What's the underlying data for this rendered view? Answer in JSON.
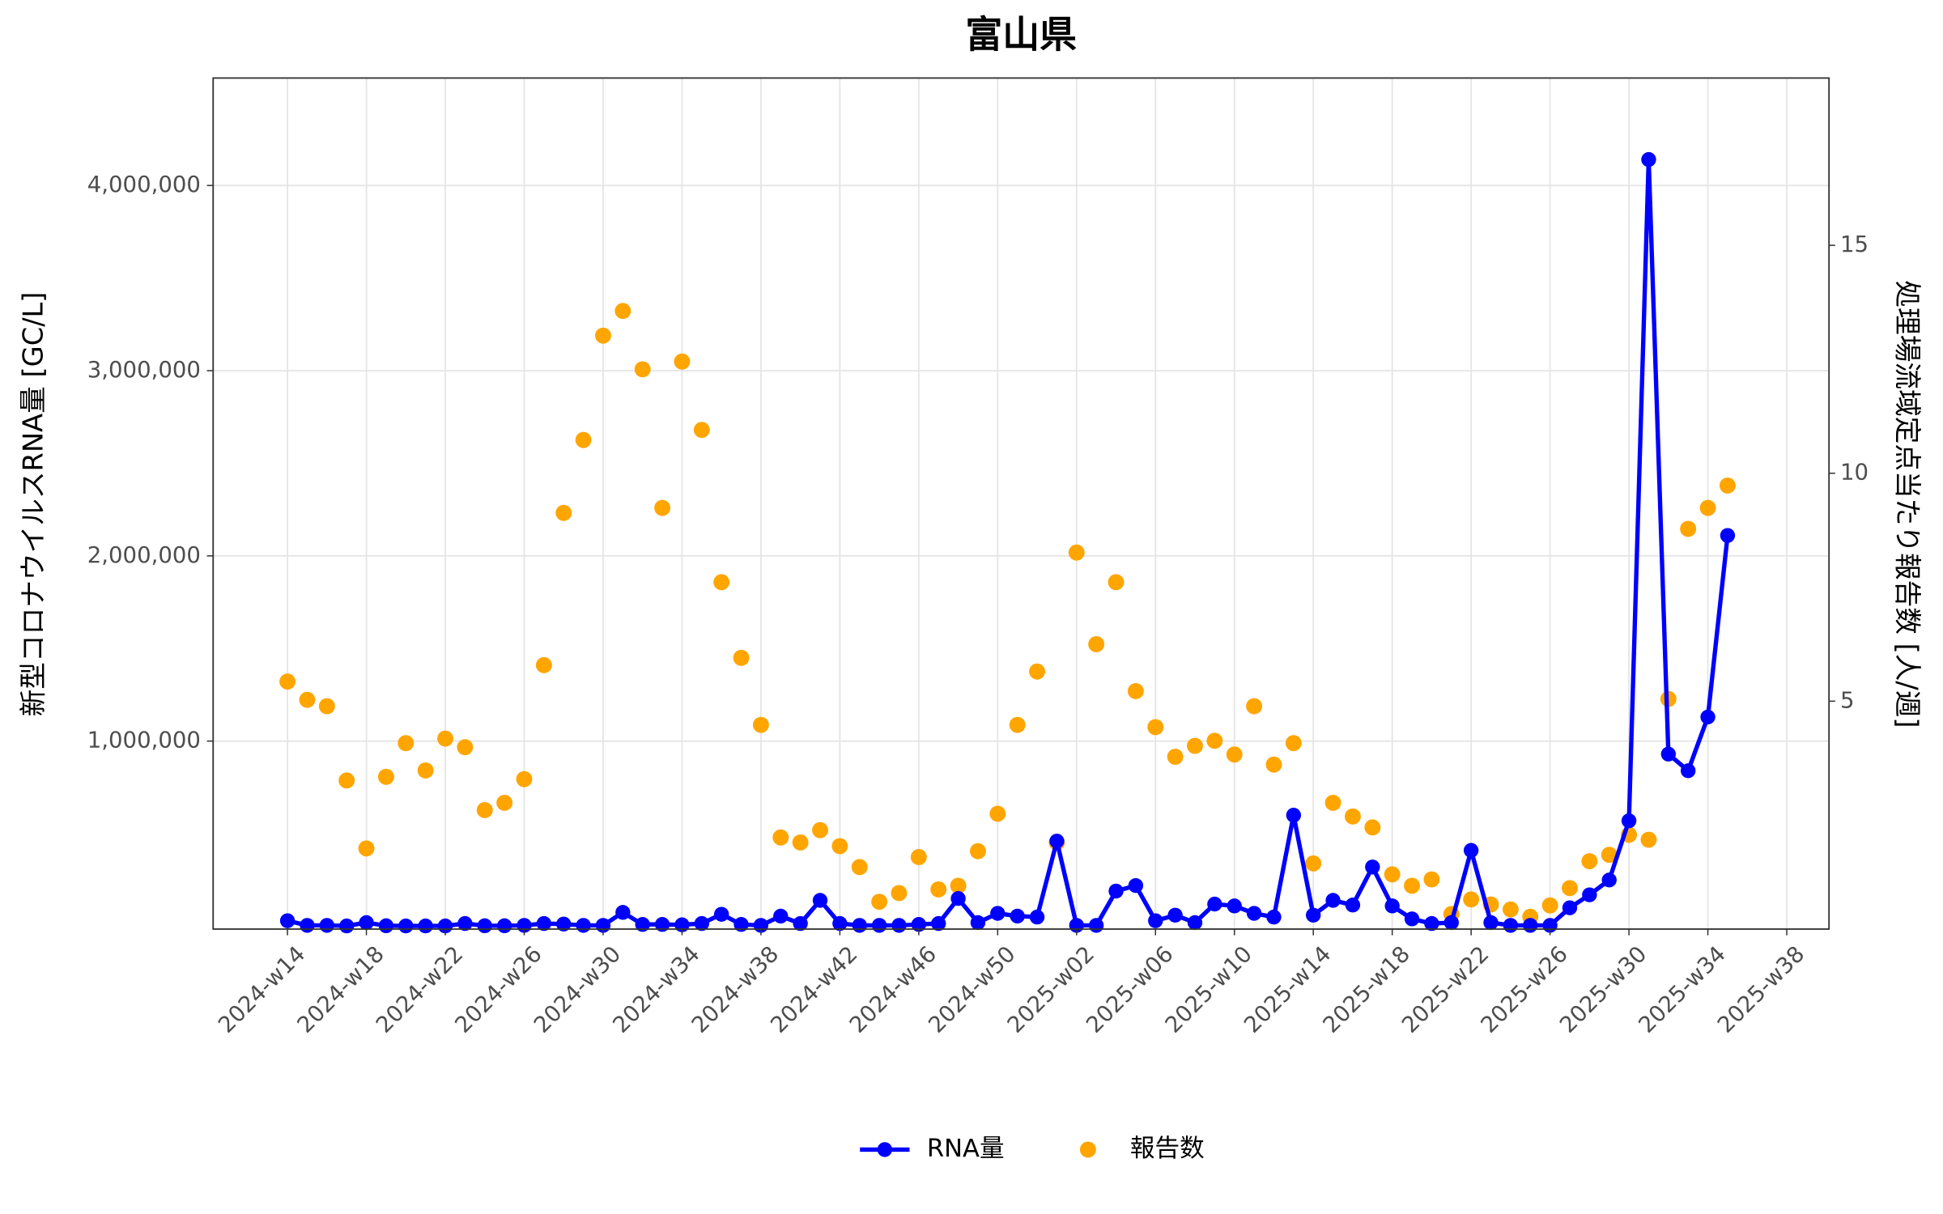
{
  "chart_data": {
    "type": "line-scatter-dual",
    "title": "富山県",
    "y_label": "新型コロナウイルスRNA量 [GC/L]",
    "y2_label": "処理場流域定点当たり報告数 [人/週]",
    "categories": [
      "2024-w14",
      null,
      null,
      null,
      "2024-w18",
      null,
      null,
      null,
      "2024-w22",
      null,
      null,
      null,
      "2024-w26",
      null,
      null,
      null,
      "2024-w30",
      null,
      null,
      null,
      "2024-w34",
      null,
      null,
      null,
      "2024-w38",
      null,
      null,
      null,
      "2024-w42",
      null,
      null,
      null,
      "2024-w46",
      null,
      null,
      null,
      "2024-w50",
      null,
      null,
      null,
      "2025-w02",
      null,
      null,
      null,
      "2025-w06",
      null,
      null,
      null,
      "2025-w10",
      null,
      null,
      null,
      "2025-w14",
      null,
      null,
      null,
      "2025-w18",
      null,
      null,
      null,
      "2025-w22",
      null,
      null,
      null,
      "2025-w26",
      null,
      null,
      null,
      "2025-w30",
      null,
      null,
      null,
      "2025-w34",
      null,
      null,
      null,
      "2025-w38"
    ],
    "series": [
      {
        "name": "RNA量",
        "color": "#0000ff",
        "style": "line-points",
        "values": [
          30000,
          5000,
          5000,
          2000,
          20000,
          3000,
          2000,
          2000,
          2000,
          15000,
          3000,
          3000,
          5000,
          15000,
          12000,
          5000,
          5000,
          75000,
          10000,
          10000,
          8000,
          15000,
          65000,
          10000,
          5000,
          55000,
          15000,
          140000,
          15000,
          5000,
          5000,
          5000,
          10000,
          15000,
          150000,
          20000,
          70000,
          55000,
          50000,
          460000,
          5000,
          5000,
          190000,
          220000,
          30000,
          60000,
          20000,
          120000,
          110000,
          70000,
          50000,
          600000,
          60000,
          140000,
          115000,
          320000,
          110000,
          40000,
          15000,
          20000,
          410000,
          20000,
          5000,
          5000,
          5000,
          100000,
          170000,
          250000,
          570000,
          4140000,
          930000,
          840000,
          1130000,
          2110000,
          null,
          null,
          null
        ]
      },
      {
        "name": "報告数",
        "color": "#ffa500",
        "style": "points",
        "axis": "y2",
        "values": [
          5.43,
          5.03,
          4.89,
          3.26,
          1.77,
          3.34,
          4.08,
          3.48,
          4.18,
          3.99,
          2.61,
          2.77,
          3.29,
          5.79,
          9.13,
          10.73,
          13.02,
          13.56,
          12.28,
          9.24,
          12.45,
          10.95,
          7.61,
          5.95,
          4.48,
          2.01,
          1.9,
          2.17,
          1.82,
          1.36,
          0.6,
          0.79,
          1.58,
          0.87,
          0.95,
          1.71,
          2.53,
          4.48,
          5.65,
          1.9,
          8.26,
          6.25,
          7.61,
          5.22,
          4.43,
          3.78,
          4.02,
          4.13,
          3.83,
          4.89,
          3.61,
          4.08,
          1.44,
          2.77,
          2.47,
          2.23,
          1.2,
          0.95,
          1.09,
          0.33,
          0.65,
          0.54,
          0.43,
          0.27,
          0.52,
          0.9,
          1.49,
          1.63,
          2.07,
          1.96,
          5.05,
          8.78,
          9.24,
          9.73,
          null,
          null,
          null
        ]
      }
    ],
    "ylim": [
      -15000,
      4580000
    ],
    "yticks": [
      {
        "value": 1000000,
        "label": "1,000,000"
      },
      {
        "value": 2000000,
        "label": "2,000,000"
      },
      {
        "value": 3000000,
        "label": "3,000,000"
      },
      {
        "value": 4000000,
        "label": "4,000,000"
      }
    ],
    "y2lim": [
      0,
      18.67
    ],
    "y2ticks": [
      5,
      10,
      15
    ],
    "grid": true,
    "legend": "bottom"
  }
}
